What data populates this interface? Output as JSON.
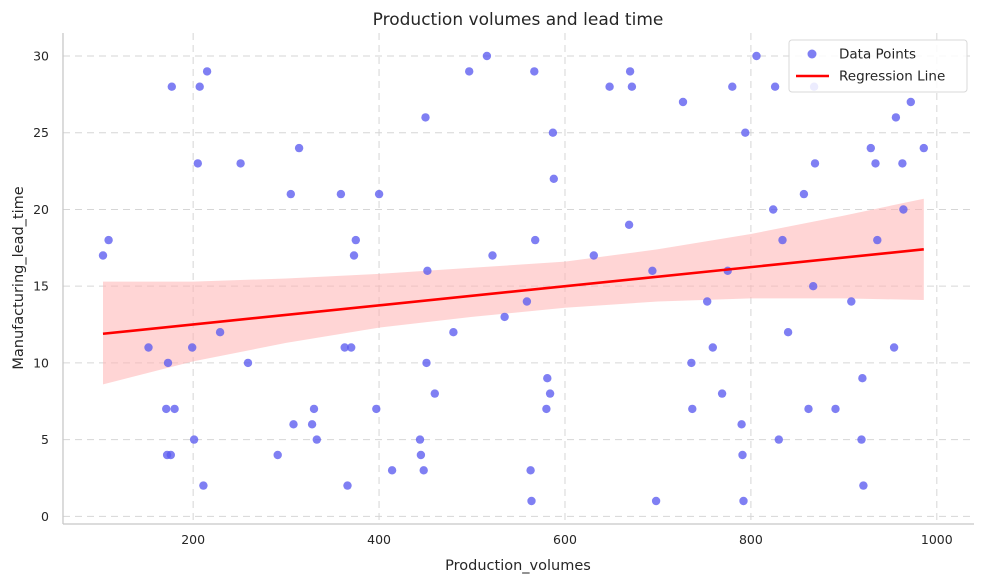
{
  "chart_data": {
    "type": "scatter",
    "title": "Production volumes and lead time",
    "xlabel": "Production_volumes",
    "ylabel": "Manufacturing_lead_time",
    "xlim": [
      60,
      1040
    ],
    "ylim": [
      -0.5,
      31.5
    ],
    "xticks": [
      200,
      400,
      600,
      800,
      1000
    ],
    "yticks": [
      0,
      5,
      10,
      15,
      20,
      25,
      30
    ],
    "grid": true,
    "legend_position": "top-right",
    "colors": {
      "points": "#5b5bf0",
      "line": "#ff0000",
      "band": "#ffb3b3"
    },
    "series": [
      {
        "name": "Data Points",
        "type": "scatter",
        "points": [
          [
            103,
            17
          ],
          [
            109,
            18
          ],
          [
            152,
            11
          ],
          [
            171,
            7
          ],
          [
            172,
            4
          ],
          [
            173,
            10
          ],
          [
            176,
            4
          ],
          [
            177,
            28
          ],
          [
            180,
            7
          ],
          [
            199,
            11
          ],
          [
            201,
            5
          ],
          [
            205,
            23
          ],
          [
            207,
            28
          ],
          [
            211,
            2
          ],
          [
            215,
            29
          ],
          [
            229,
            12
          ],
          [
            251,
            23
          ],
          [
            259,
            10
          ],
          [
            291,
            4
          ],
          [
            305,
            21
          ],
          [
            308,
            6
          ],
          [
            314,
            24
          ],
          [
            328,
            6
          ],
          [
            330,
            7
          ],
          [
            333,
            5
          ],
          [
            359,
            21
          ],
          [
            363,
            11
          ],
          [
            366,
            2
          ],
          [
            370,
            11
          ],
          [
            373,
            17
          ],
          [
            375,
            18
          ],
          [
            397,
            7
          ],
          [
            400,
            21
          ],
          [
            414,
            3
          ],
          [
            444,
            5
          ],
          [
            445,
            4
          ],
          [
            448,
            3
          ],
          [
            450,
            26
          ],
          [
            451,
            10
          ],
          [
            452,
            16
          ],
          [
            460,
            8
          ],
          [
            480,
            12
          ],
          [
            497,
            29
          ],
          [
            516,
            30
          ],
          [
            522,
            17
          ],
          [
            535,
            13
          ],
          [
            559,
            14
          ],
          [
            563,
            3
          ],
          [
            564,
            1
          ],
          [
            567,
            29
          ],
          [
            568,
            18
          ],
          [
            580,
            7
          ],
          [
            581,
            9
          ],
          [
            584,
            8
          ],
          [
            587,
            25
          ],
          [
            588,
            22
          ],
          [
            631,
            17
          ],
          [
            648,
            28
          ],
          [
            669,
            19
          ],
          [
            670,
            29
          ],
          [
            672,
            28
          ],
          [
            694,
            16
          ],
          [
            698,
            1
          ],
          [
            727,
            27
          ],
          [
            736,
            10
          ],
          [
            737,
            7
          ],
          [
            753,
            14
          ],
          [
            759,
            11
          ],
          [
            769,
            8
          ],
          [
            775,
            16
          ],
          [
            780,
            28
          ],
          [
            790,
            6
          ],
          [
            791,
            4
          ],
          [
            792,
            1
          ],
          [
            794,
            25
          ],
          [
            806,
            30
          ],
          [
            824,
            20
          ],
          [
            826,
            28
          ],
          [
            830,
            5
          ],
          [
            834,
            18
          ],
          [
            840,
            12
          ],
          [
            857,
            21
          ],
          [
            862,
            7
          ],
          [
            867,
            15
          ],
          [
            868,
            28
          ],
          [
            869,
            23
          ],
          [
            891,
            7
          ],
          [
            908,
            14
          ],
          [
            919,
            5
          ],
          [
            920,
            9
          ],
          [
            921,
            2
          ],
          [
            929,
            24
          ],
          [
            934,
            23
          ],
          [
            936,
            18
          ],
          [
            954,
            11
          ],
          [
            956,
            26
          ],
          [
            963,
            23
          ],
          [
            964,
            20
          ],
          [
            972,
            27
          ],
          [
            986,
            24
          ]
        ]
      },
      {
        "name": "Regression Line",
        "type": "line",
        "x": [
          103,
          986
        ],
        "y": [
          11.9,
          17.4
        ]
      }
    ],
    "confidence_band": {
      "x": [
        103,
        200,
        300,
        400,
        500,
        600,
        700,
        800,
        900,
        986
      ],
      "lower": [
        8.6,
        10.1,
        11.3,
        12.3,
        13.0,
        13.6,
        14.0,
        14.2,
        14.2,
        14.1
      ],
      "upper": [
        15.3,
        15.3,
        15.5,
        15.8,
        16.2,
        16.6,
        17.4,
        18.4,
        19.6,
        20.7
      ]
    }
  }
}
